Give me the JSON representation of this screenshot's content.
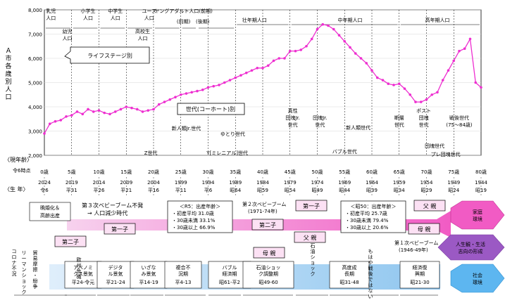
{
  "chart_data": {
    "type": "line",
    "ylabel": "Ａ市 各歳別人口",
    "ylim": [
      2000,
      8000
    ],
    "yticks": [
      2000,
      3000,
      4000,
      5000,
      6000,
      7000,
      8000
    ],
    "ytick_labels": [
      "2,000",
      "3,000",
      "4,000",
      "5,000",
      "6,000",
      "7,000",
      "8,000"
    ],
    "x_label": "〈現年齢〉",
    "xticks": [
      0,
      5,
      10,
      15,
      20,
      25,
      30,
      35,
      40,
      45,
      50,
      55,
      60,
      65,
      70,
      75,
      80
    ],
    "xtick_labels": [
      "0歳",
      "5歳",
      "10歳",
      "15歳",
      "20歳",
      "25歳",
      "30歳",
      "35歳",
      "40歳",
      "45歳",
      "50歳",
      "55歳",
      "60歳",
      "65歳",
      "70歳",
      "75歳",
      "80歳"
    ],
    "birth_years_label": "〈生 年〉",
    "reiwa_label": "令6時点",
    "birth_years": [
      "2024",
      "2019",
      "2014",
      "2009",
      "2004",
      "1999",
      "1994",
      "1989",
      "1984",
      "1979",
      "1974",
      "1969",
      "1964",
      "1959",
      "1954",
      "1949",
      "1944"
    ],
    "birth_eras": [
      "令6",
      "平31",
      "平26",
      "平21",
      "平16",
      "平11",
      "平6",
      "昭64",
      "昭59",
      "昭54",
      "昭49",
      "昭44",
      "昭39",
      "昭34",
      "昭29",
      "昭24",
      "昭19"
    ],
    "x": [
      0,
      1,
      2,
      3,
      4,
      5,
      6,
      7,
      8,
      9,
      10,
      11,
      12,
      13,
      14,
      15,
      16,
      17,
      18,
      19,
      20,
      21,
      22,
      23,
      24,
      25,
      26,
      27,
      28,
      29,
      30,
      31,
      32,
      33,
      34,
      35,
      36,
      37,
      38,
      39,
      40,
      41,
      42,
      43,
      44,
      45,
      46,
      47,
      48,
      49,
      50,
      51,
      52,
      53,
      54,
      55,
      56,
      57,
      58,
      59,
      60,
      61,
      62,
      63,
      64,
      65,
      66,
      67,
      68,
      69,
      70,
      71,
      72,
      73,
      74,
      75,
      76,
      77,
      78,
      79,
      80
    ],
    "values": [
      2900,
      3300,
      3400,
      3450,
      3600,
      3650,
      3800,
      3700,
      3900,
      3800,
      3850,
      3750,
      3700,
      3800,
      3900,
      4000,
      3950,
      3900,
      3800,
      3850,
      3900,
      4100,
      4200,
      4300,
      4400,
      4500,
      4550,
      4600,
      4650,
      4700,
      4800,
      4850,
      4900,
      5000,
      5100,
      5200,
      5300,
      5400,
      5500,
      5600,
      5600,
      5700,
      5900,
      6000,
      6000,
      6300,
      6300,
      6350,
      6500,
      6800,
      7200,
      7400,
      7350,
      7200,
      6950,
      6700,
      6450,
      6200,
      6000,
      5800,
      5500,
      5200,
      5100,
      4950,
      4900,
      4950,
      4750,
      4500,
      4200,
      4200,
      4300,
      4500,
      4600,
      5100,
      5500,
      5900,
      6300,
      6400,
      6800,
      5000,
      4800
    ]
  },
  "life_stages": [
    "乳児人口",
    "幼児人口",
    "小学生人口",
    "中学生人口",
    "高校生人口",
    "ユース人口",
    "ヤングアダルト人口(前期)",
    "(後期)",
    "壮年期人口",
    "中年期人口",
    "高年期人口"
  ],
  "stage_callout": "ライフステージ別",
  "generation_callout": "世代(コーホート)別",
  "generations": [
    "新人類Jr.世代",
    "ゆとり世代",
    "Z世代",
    "Y[ミレニアル]世代",
    "真性団塊Jr.世代",
    "団塊Jr.世代",
    "新人類世代",
    "バブル世代",
    "断層世代",
    "ポスト団塊世代",
    "戦後世代",
    "(75～84歳)",
    "団塊世代",
    "プレ団塊世代"
  ],
  "third_boom": {
    "label": "第３次ベビーブーム不発",
    "sub": "→ 人口減少時代"
  },
  "late_marriage": "晩婚化＆高齢出産",
  "second_boom": {
    "label": "第２次ベビーブーム",
    "years": "(1971-74年)"
  },
  "first_boom": {
    "label": "第１次ベビーブーム",
    "years": "(1946-49年)"
  },
  "r5_box": {
    "title": "＜R5：出産年齢＞",
    "lines": [
      "・初産平均 31.0歳",
      "・30歳未満 33.1%",
      "・30歳以上 66.9%"
    ]
  },
  "s50_box": {
    "title": "＜昭50：出産年齢＞",
    "lines": [
      "・初産平均 25.7歳",
      "・30歳未満 79.4%",
      "・30歳以上 20.6%"
    ]
  },
  "family": {
    "first_child": "第一子",
    "second_child": "第二子",
    "mother": "母 親",
    "father": "父 親"
  },
  "hexagons": [
    "家庭環境",
    "人生観・生活志向の形成",
    "社会環境"
  ],
  "events": [
    {
      "label": "コロナ不況",
      "era": ""
    },
    {
      "label": "リーマンショック",
      "era": ""
    },
    {
      "label": "貿易摩擦・紛争",
      "era": ""
    },
    {
      "label": "アベノミクス景気",
      "era": "平24-令元"
    },
    {
      "label": "欧州危機",
      "era": ""
    },
    {
      "label": "デジタル景気",
      "era": "平21-24"
    },
    {
      "label": "いざなみ景気",
      "era": "平14-19"
    },
    {
      "label": "複合不況期",
      "era": "平4-13"
    },
    {
      "label": "バブル経済期",
      "era": "昭61-平2"
    },
    {
      "label": "石油ショック調整期",
      "era": "昭49-60"
    },
    {
      "label": "石油ショック",
      "era": ""
    },
    {
      "label": "高度成長期",
      "era": "昭31-48"
    },
    {
      "label": "もはや戦後ではない",
      "era": ""
    },
    {
      "label": "経済復興期",
      "era": "昭21-30"
    }
  ]
}
